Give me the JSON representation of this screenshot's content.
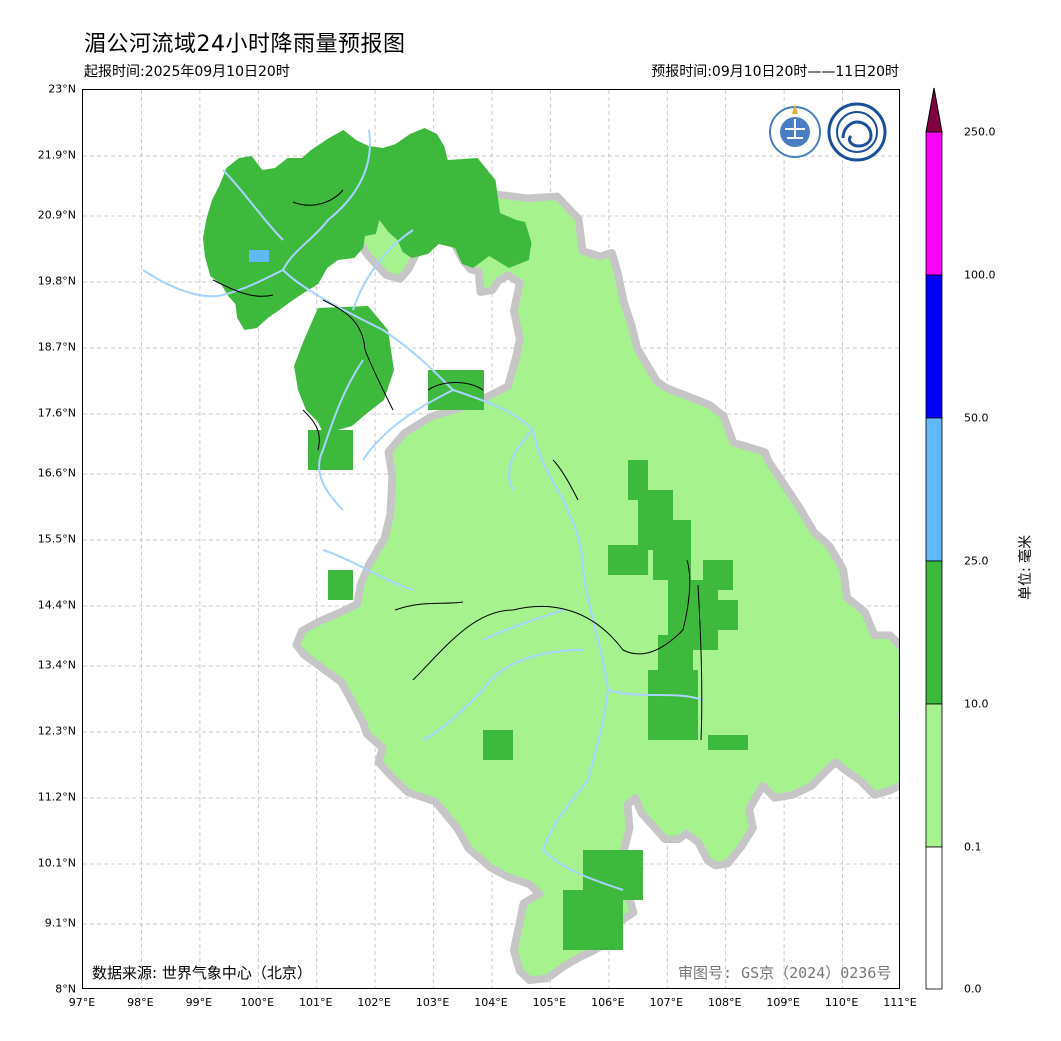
{
  "title": "湄公河流域24小时降雨量预报图",
  "issue_time": "起报时间:2025年09月10日20时",
  "forecast_time": "预报时间:09月10日20时——11日20时",
  "data_source": "数据来源: 世界气象中心（北京）",
  "review_number": "审图号: GS京（2024）0236号",
  "colorbar": {
    "unit": "单位: 毫米",
    "levels": [
      "0.0",
      "0.1",
      "10.0",
      "25.0",
      "50.0",
      "100.0",
      "250.0"
    ],
    "colors": [
      "#ffffff",
      "#a6f28f",
      "#3dba3d",
      "#61b8ff",
      "#0000ff",
      "#fa00fa",
      "#800040"
    ]
  },
  "axes": {
    "lat_ticks": [
      "23°N",
      "21.9°N",
      "20.9°N",
      "19.8°N",
      "18.7°N",
      "17.6°N",
      "16.6°N",
      "15.5°N",
      "14.4°N",
      "13.4°N",
      "12.3°N",
      "11.2°N",
      "10.1°N",
      "9.1°N",
      "8°N"
    ],
    "lon_ticks": [
      "97°E",
      "98°E",
      "99°E",
      "100°E",
      "101°E",
      "102°E",
      "103°E",
      "104°E",
      "105°E",
      "106°E",
      "107°E",
      "108°E",
      "109°E",
      "110°E",
      "111°E"
    ]
  },
  "logos": [
    "wmo-logo",
    "cma-logo"
  ]
}
